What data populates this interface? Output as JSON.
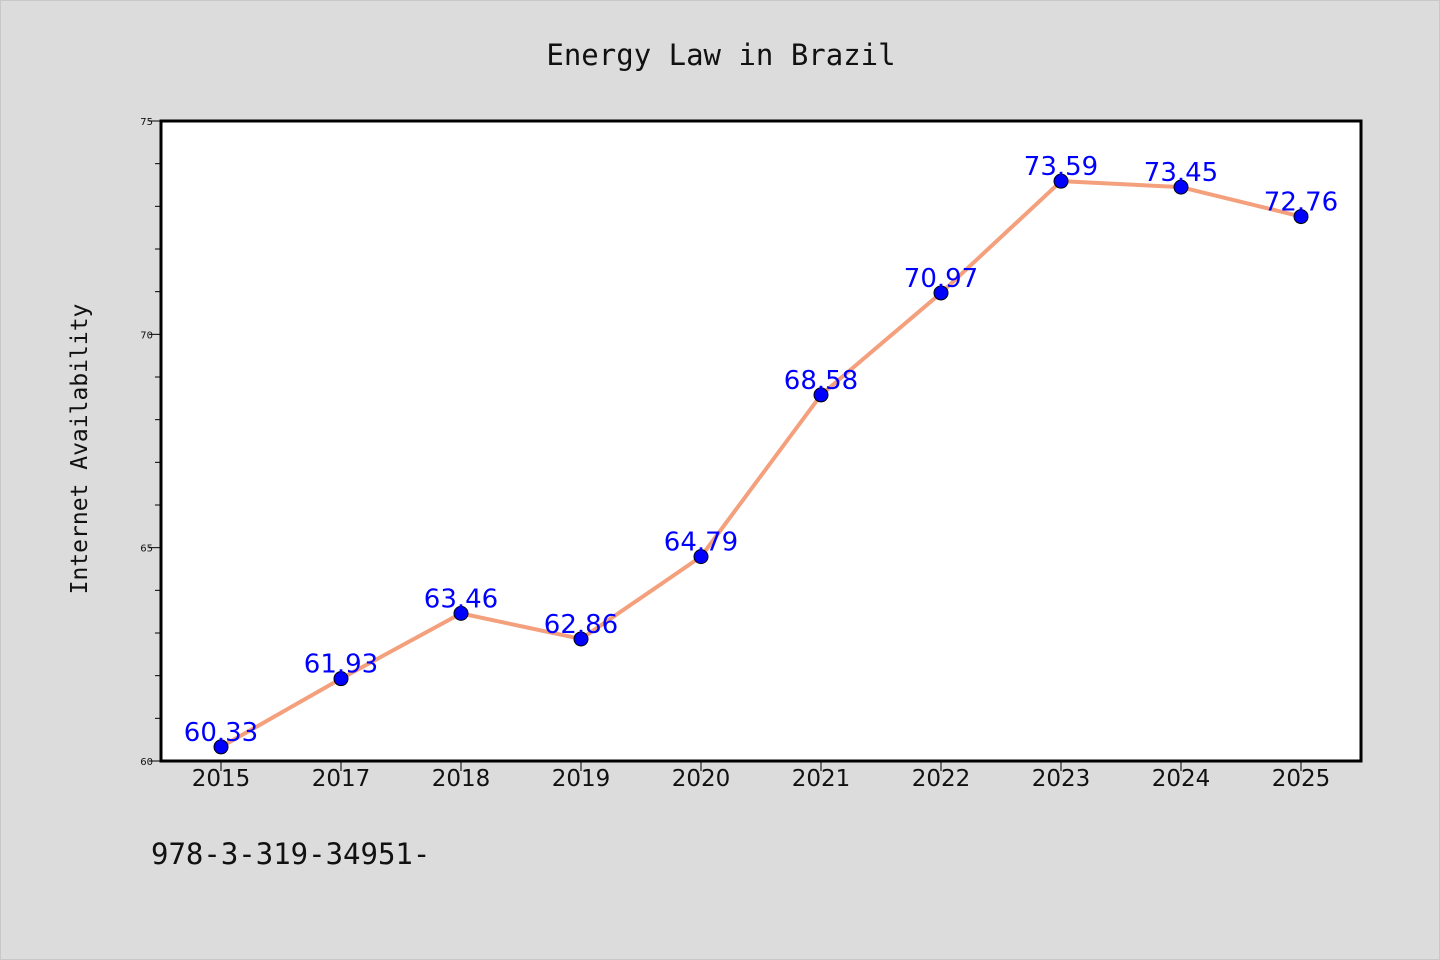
{
  "chart_data": {
    "type": "line",
    "title": "Energy Law in Brazil",
    "xlabel": "",
    "ylabel": "Internet Availability",
    "categories": [
      "2015",
      "2017",
      "2018",
      "2019",
      "2020",
      "2021",
      "2022",
      "2023",
      "2024",
      "2025"
    ],
    "values": [
      60.33,
      61.93,
      63.46,
      62.86,
      64.79,
      68.58,
      70.97,
      73.59,
      73.45,
      72.76
    ],
    "data_labels": [
      "60.33",
      "61.93",
      "63.46",
      "62.86",
      "64.79",
      "68.58",
      "70.97",
      "73.59",
      "73.45",
      "72.76"
    ],
    "ylim": [
      60,
      75
    ],
    "yticks": [
      "60",
      "65",
      "70",
      "75"
    ],
    "grid": false,
    "line_color": "#f4a07c",
    "marker_color": "#0000ff"
  },
  "footer": {
    "text": "978-3-319-34951-"
  }
}
